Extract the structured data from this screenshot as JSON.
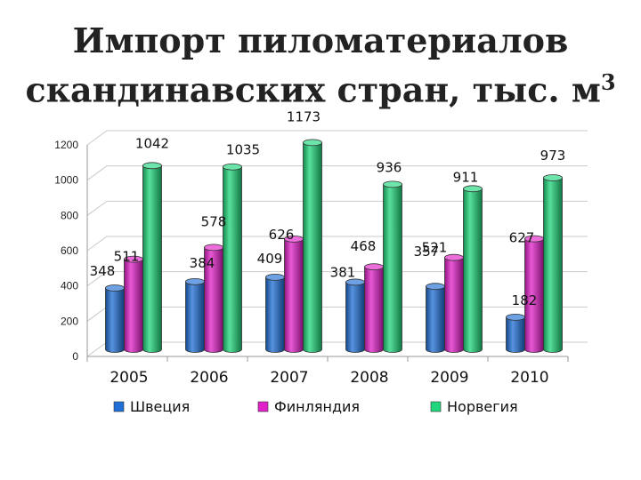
{
  "title_line1": "Импорт пиломатериалов",
  "title_line2": "скандинавских стран, тыс. м",
  "title_sup": "3",
  "chart_data": {
    "type": "bar",
    "categories": [
      "2005",
      "2006",
      "2007",
      "2008",
      "2009",
      "2010"
    ],
    "series": [
      {
        "name": "Швеция",
        "values": [
          348,
          384,
          409,
          381,
          357,
          182
        ],
        "color": "#1f6fd6"
      },
      {
        "name": "Финляндия",
        "values": [
          511,
          578,
          626,
          468,
          521,
          627
        ],
        "color": "#e020c8"
      },
      {
        "name": "Норвегия",
        "values": [
          1042,
          1035,
          1173,
          936,
          911,
          973
        ],
        "color": "#1fd67a"
      }
    ],
    "ylim": [
      0,
      1200
    ],
    "yticks": [
      0,
      200,
      400,
      600,
      800,
      1000,
      1200
    ],
    "grid": true,
    "legend_position": "bottom"
  }
}
